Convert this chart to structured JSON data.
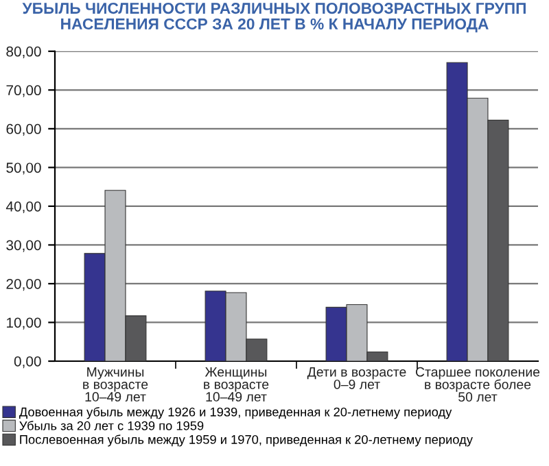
{
  "chart_data": {
    "type": "bar",
    "title": "УБЫЛЬ ЧИСЛЕННОСТИ РАЗЛИЧНЫХ ПОЛОВОЗРАСТНЫХ ГРУПП\nНАСЕЛЕНИЯ СССР ЗА 20 ЛЕТ В % К НАЧАЛУ ПЕРИОДА",
    "categories": [
      "Мужчины\nв возрасте\n10–49 лет",
      "Женщины\nв возрасте\n10–49 лет",
      "Дети в возрасте\n0–9 лет",
      "Старшее поколение\nв возрасте более\n50 лет"
    ],
    "series": [
      {
        "name": "Довоенная убыль между 1926 и 1939, приведенная к 20-летнему периоду",
        "color": "#35348f",
        "values": [
          27.8,
          18.1,
          13.9,
          77.1
        ]
      },
      {
        "name": "Убыль за 20 лет с 1939 по 1959",
        "color": "#b9bbbe",
        "values": [
          44.1,
          17.7,
          14.6,
          67.9
        ]
      },
      {
        "name": "Послевоенная убыль между 1959 и 1970, приведенная к 20-летнему периоду",
        "color": "#58585a",
        "values": [
          11.7,
          5.7,
          2.4,
          62.2
        ]
      }
    ],
    "ylim": [
      0,
      80
    ],
    "yticks": [
      {
        "value": 0,
        "label": "0,00"
      },
      {
        "value": 10,
        "label": "10,00"
      },
      {
        "value": 20,
        "label": "20,00"
      },
      {
        "value": 30,
        "label": "30,00"
      },
      {
        "value": 40,
        "label": "40,00"
      },
      {
        "value": 50,
        "label": "50,00"
      },
      {
        "value": 60,
        "label": "60,00"
      },
      {
        "value": 70,
        "label": "70,00"
      },
      {
        "value": 80,
        "label": "80,00"
      }
    ],
    "grid": "y",
    "legend": "bottom"
  }
}
